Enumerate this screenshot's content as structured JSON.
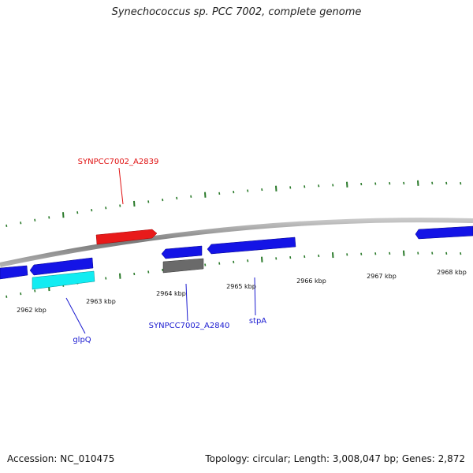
{
  "title": "Synechococcus sp. PCC 7002, complete genome",
  "footer": {
    "accession": "Accession: NC_010475",
    "summary": "Topology: circular; Length: 3,008,047 bp; Genes: 2,872"
  },
  "colors": {
    "backbone": "#8a8a8a",
    "tick": "#2a7a2a",
    "gene_blue": "#1010e0",
    "gene_red": "#e01010",
    "gene_cyan": "#10e8f0",
    "gene_gray": "#666666",
    "label_blue": "#1a1ad0",
    "label_red": "#e01010"
  },
  "axis": {
    "tick_labels": [
      "2962 kbp",
      "2963 kbp",
      "2964 kbp",
      "2965 kbp",
      "2966 kbp",
      "2967 kbp",
      "2968 kbp"
    ]
  },
  "genes": [
    {
      "id": "a2839",
      "label": "SYNPCC7002_A2839",
      "strand": "+",
      "color": "red"
    },
    {
      "id": "glpq",
      "label": "glpQ",
      "strand": "-",
      "color": "cyan"
    },
    {
      "id": "a2840",
      "label": "SYNPCC7002_A2840",
      "strand": "-",
      "color": "gray"
    },
    {
      "id": "stpa",
      "label": "stpA",
      "strand": "-",
      "color": "blue"
    },
    {
      "id": "blue1",
      "label": "",
      "strand": "-",
      "color": "blue"
    },
    {
      "id": "blue2",
      "label": "",
      "strand": "-",
      "color": "blue"
    },
    {
      "id": "blue3",
      "label": "",
      "strand": "-",
      "color": "blue"
    },
    {
      "id": "blue4",
      "label": "",
      "strand": "-",
      "color": "blue"
    }
  ]
}
